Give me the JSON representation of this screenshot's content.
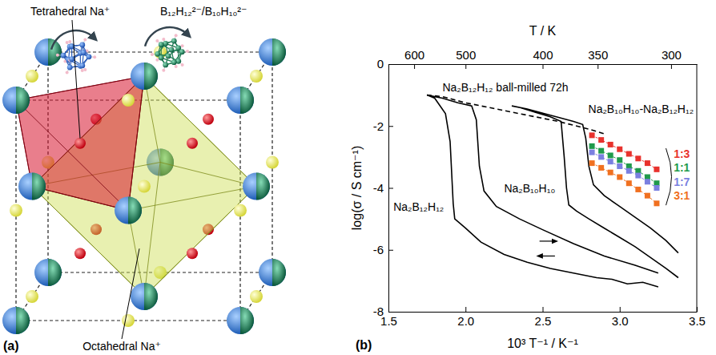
{
  "diagram": {
    "panel_label": "(a)",
    "labels": {
      "tetrahedral": "Tetrahedral Na⁺",
      "anion": "B₁₂H₁₂²⁻/B₁₀H₁₀²⁻",
      "octahedral": "Octahedral Na⁺"
    }
  },
  "chart_data": {
    "type": "line",
    "panel_label": "(b)",
    "xlabel": "10³ T⁻¹ / K⁻¹",
    "ylabel": "log(σ / S cm⁻¹)",
    "x2label": "T / K",
    "xlim": [
      1.5,
      3.5
    ],
    "xticks": [
      1.5,
      {
        "value": 2,
        "label": "2.0"
      },
      2.5,
      {
        "value": 3,
        "label": "3.0"
      },
      3.5
    ],
    "x2ticks": [
      {
        "value": 1.6667,
        "label": "600"
      },
      {
        "value": 2,
        "label": "500"
      },
      {
        "value": 2.5,
        "label": "400"
      },
      {
        "value": 2.8571,
        "label": "350"
      },
      {
        "value": 3.3333,
        "label": "300"
      }
    ],
    "ylim": [
      -8,
      0
    ],
    "yticks": [
      -8,
      -6,
      -4,
      -2,
      0
    ],
    "grid": false,
    "annotations": [
      "Na₂B₁₀H₁₀-Na₂B₁₂H₁₂"
    ],
    "series": [
      {
        "name": "Na₂B₁₂H₁₂ ball-milled 72h",
        "color": "#000000",
        "line_style": "dashed",
        "marker": "none",
        "x": [
          1.75,
          1.85,
          2.0,
          2.2,
          2.4,
          2.6,
          2.8,
          2.9
        ],
        "values": [
          -1.0,
          -1.05,
          -1.25,
          -1.45,
          -1.65,
          -1.85,
          -2.1,
          -2.25
        ]
      },
      {
        "name": "Na₂B₁₂H₁₂",
        "color": "#000000",
        "line_style": "solid",
        "marker": "none",
        "x": [
          3.25,
          3.15,
          3.05,
          2.95,
          2.85,
          2.7,
          2.55,
          2.4,
          2.25,
          2.1,
          2.0,
          1.93,
          1.92,
          1.9,
          1.87,
          1.8,
          1.75,
          1.85,
          1.95,
          2.04,
          2.07,
          2.09,
          2.12,
          2.2,
          2.35,
          2.5,
          2.7,
          2.9,
          3.1,
          3.25
        ],
        "values": [
          -7.2,
          -7.05,
          -7.1,
          -6.95,
          -6.9,
          -6.75,
          -6.6,
          -6.4,
          -6.15,
          -5.75,
          -5.3,
          -5.0,
          -4.5,
          -2.5,
          -1.6,
          -1.1,
          -1.0,
          -1.1,
          -1.25,
          -1.35,
          -1.8,
          -3.3,
          -4.1,
          -4.6,
          -5.0,
          -5.35,
          -5.8,
          -6.2,
          -6.5,
          -6.75
        ]
      },
      {
        "name": "Na₂B₁₀H₁₀",
        "color": "#000000",
        "line_style": "solid",
        "marker": "none",
        "x": [
          3.38,
          3.3,
          3.2,
          3.1,
          3.0,
          2.9,
          2.8,
          2.72,
          2.67,
          2.655,
          2.64,
          2.62,
          2.55,
          2.45,
          2.35,
          2.3,
          2.4,
          2.55,
          2.7,
          2.76,
          2.78,
          2.8,
          2.83,
          2.9,
          3.0,
          3.1,
          3.2,
          3.3,
          3.38
        ],
        "values": [
          -6.9,
          -6.6,
          -6.25,
          -5.9,
          -5.6,
          -5.3,
          -5.0,
          -4.75,
          -4.55,
          -4.0,
          -3.0,
          -1.85,
          -1.7,
          -1.55,
          -1.4,
          -1.35,
          -1.45,
          -1.65,
          -1.85,
          -1.95,
          -2.4,
          -3.3,
          -3.9,
          -4.25,
          -4.6,
          -4.95,
          -5.3,
          -5.7,
          -6.1
        ]
      },
      {
        "name": "1:3",
        "color": "#e8322d",
        "line_style": "dashed",
        "marker": "square",
        "x": [
          2.82,
          2.88,
          2.94,
          3.0,
          3.06,
          3.12,
          3.18,
          3.24
        ],
        "values": [
          -2.3,
          -2.45,
          -2.6,
          -2.75,
          -2.9,
          -3.05,
          -3.2,
          -3.4
        ]
      },
      {
        "name": "1:1",
        "color": "#1f9a4b",
        "line_style": "dashed",
        "marker": "square",
        "x": [
          2.82,
          2.88,
          2.94,
          3.0,
          3.06,
          3.12,
          3.18,
          3.24
        ],
        "values": [
          -2.65,
          -2.8,
          -2.95,
          -3.1,
          -3.3,
          -3.45,
          -3.65,
          -3.85
        ]
      },
      {
        "name": "1:7",
        "color": "#7a80e0",
        "line_style": "dashed",
        "marker": "square",
        "x": [
          2.82,
          2.88,
          2.94,
          3.0,
          3.06,
          3.12,
          3.18,
          3.24
        ],
        "values": [
          -2.85,
          -3.0,
          -3.15,
          -3.3,
          -3.45,
          -3.6,
          -3.8,
          -4.0
        ]
      },
      {
        "name": "3:1",
        "color": "#f07020",
        "line_style": "dashed",
        "marker": "square",
        "x": [
          2.82,
          2.88,
          2.94,
          3.0,
          3.06,
          3.12,
          3.18,
          3.24
        ],
        "values": [
          -3.2,
          -3.35,
          -3.5,
          -3.65,
          -3.85,
          -4.05,
          -4.25,
          -4.5
        ]
      }
    ]
  }
}
